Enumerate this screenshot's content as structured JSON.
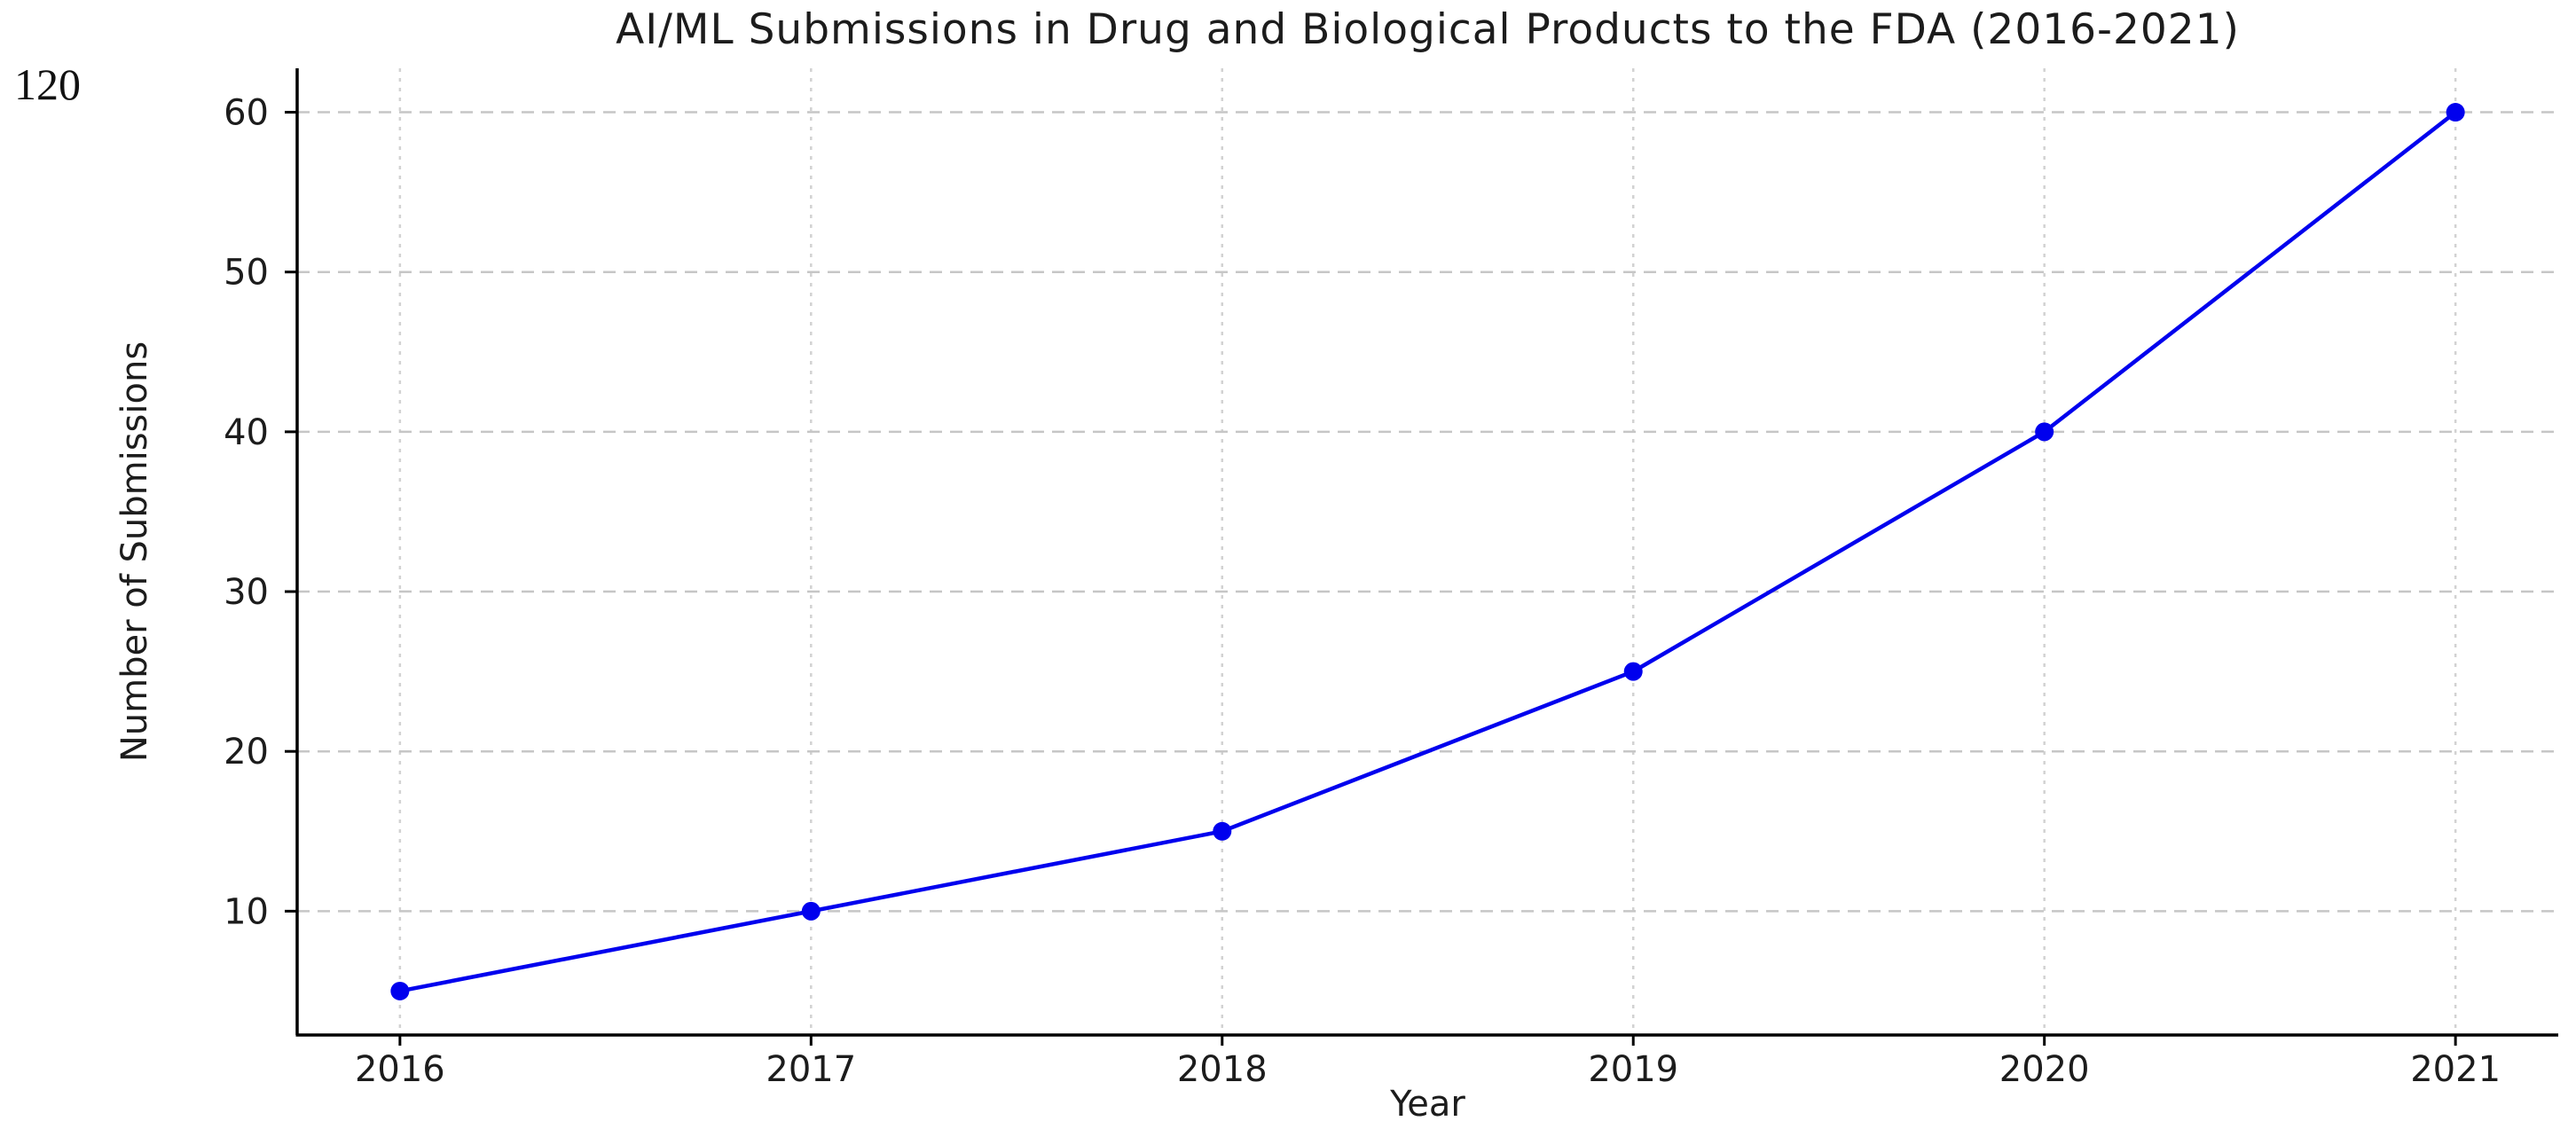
{
  "page_number": "120",
  "chart_data": {
    "type": "line",
    "title": "AI/ML Submissions in Drug and Biological Products to the FDA (2016-2021)",
    "xlabel": "Year",
    "ylabel": "Number of Submissions",
    "x": [
      2016,
      2017,
      2018,
      2019,
      2020,
      2021
    ],
    "values": [
      5,
      10,
      15,
      25,
      40,
      60
    ],
    "xtick_labels": [
      "2016",
      "2017",
      "2018",
      "2019",
      "2020",
      "2021"
    ],
    "ytick_labels": [
      "10",
      "20",
      "30",
      "40",
      "50",
      "60"
    ],
    "yticks": [
      10,
      20,
      30,
      40,
      50,
      60
    ],
    "xlim": [
      2015.75,
      2021.25
    ],
    "ylim": [
      2.25,
      62.75
    ],
    "grid": true,
    "grid_style": "dashed",
    "legend": false,
    "marker": "circle",
    "line_color": "#0000ee",
    "marker_color": "#0000ee",
    "grid_color_horizontal": "#c6c6c6",
    "grid_color_vertical": "#d2d2d2",
    "axis_color": "#000000",
    "text_color": "#1c1c1c"
  }
}
